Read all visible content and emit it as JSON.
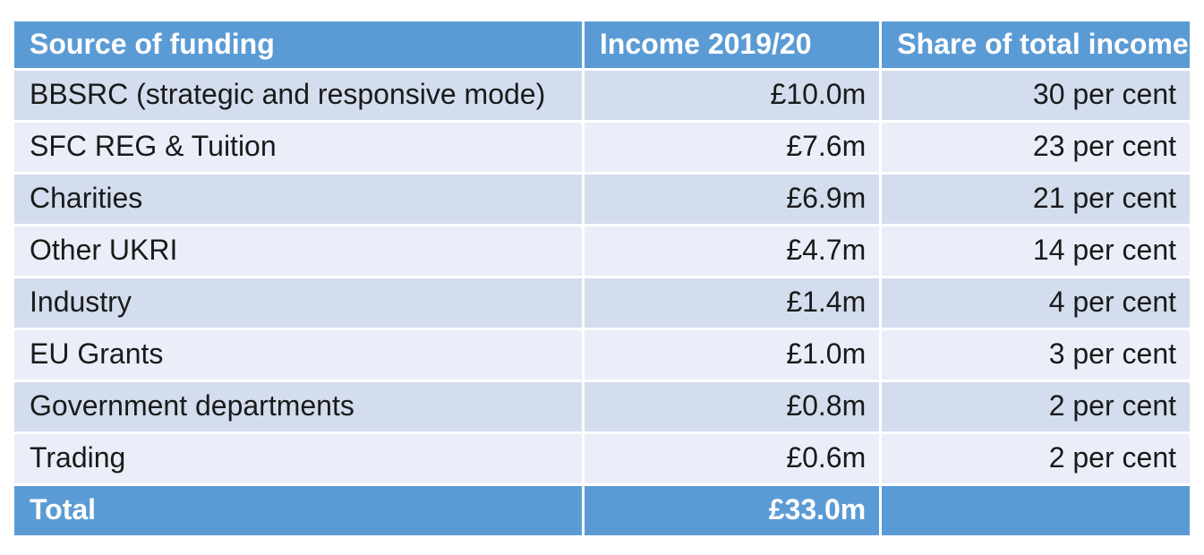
{
  "colors": {
    "accent_blue": "#5b9bd5",
    "band_dark": "#d3ddee",
    "band_light": "#ebeef8",
    "header_text": "#ffffff",
    "body_text": "#1a1a1a",
    "page_background": "#ffffff"
  },
  "table": {
    "headers": [
      "Source of funding",
      "Income 2019/20",
      "Share of total income"
    ],
    "rows": [
      {
        "source": "BBSRC (strategic and responsive mode)",
        "income": "£10.0m",
        "share": "30 per cent"
      },
      {
        "source": "SFC REG & Tuition",
        "income": "£7.6m",
        "share": "23 per cent"
      },
      {
        "source": "Charities",
        "income": "£6.9m",
        "share": "21 per cent"
      },
      {
        "source": "Other UKRI",
        "income": "£4.7m",
        "share": "14 per cent"
      },
      {
        "source": "Industry",
        "income": "£1.4m",
        "share": "4 per cent"
      },
      {
        "source": "EU Grants",
        "income": "£1.0m",
        "share": "3 per cent"
      },
      {
        "source": "Government departments",
        "income": "£0.8m",
        "share": "2 per cent"
      },
      {
        "source": "Trading",
        "income": "£0.6m",
        "share": "2 per cent"
      }
    ],
    "total": {
      "label": "Total",
      "income": "£33.0m",
      "share": ""
    }
  },
  "chart_data": {
    "type": "table",
    "title": "",
    "columns": [
      "Source of funding",
      "Income 2019/20",
      "Share of total income"
    ],
    "rows": [
      [
        "BBSRC (strategic and responsive mode)",
        "£10.0m",
        "30 per cent"
      ],
      [
        "SFC REG & Tuition",
        "£7.6m",
        "23 per cent"
      ],
      [
        "Charities",
        "£6.9m",
        "21 per cent"
      ],
      [
        "Other UKRI",
        "£4.7m",
        "14 per cent"
      ],
      [
        "Industry",
        "£1.4m",
        "4 per cent"
      ],
      [
        "EU Grants",
        "£1.0m",
        "3 per cent"
      ],
      [
        "Government departments",
        "£0.8m",
        "2 per cent"
      ],
      [
        "Trading",
        "£0.6m",
        "2 per cent"
      ]
    ],
    "total_row": [
      "Total",
      "£33.0m",
      ""
    ],
    "income_millions_gbp": [
      10.0,
      7.6,
      6.9,
      4.7,
      1.4,
      1.0,
      0.8,
      0.6
    ],
    "share_percent": [
      30,
      23,
      21,
      14,
      4,
      3,
      2,
      2
    ],
    "total_income_millions_gbp": 33.0,
    "layout": {
      "banded_rows": true,
      "header_fill": "#5b9bd5",
      "grid": "white 3px gaps"
    }
  }
}
